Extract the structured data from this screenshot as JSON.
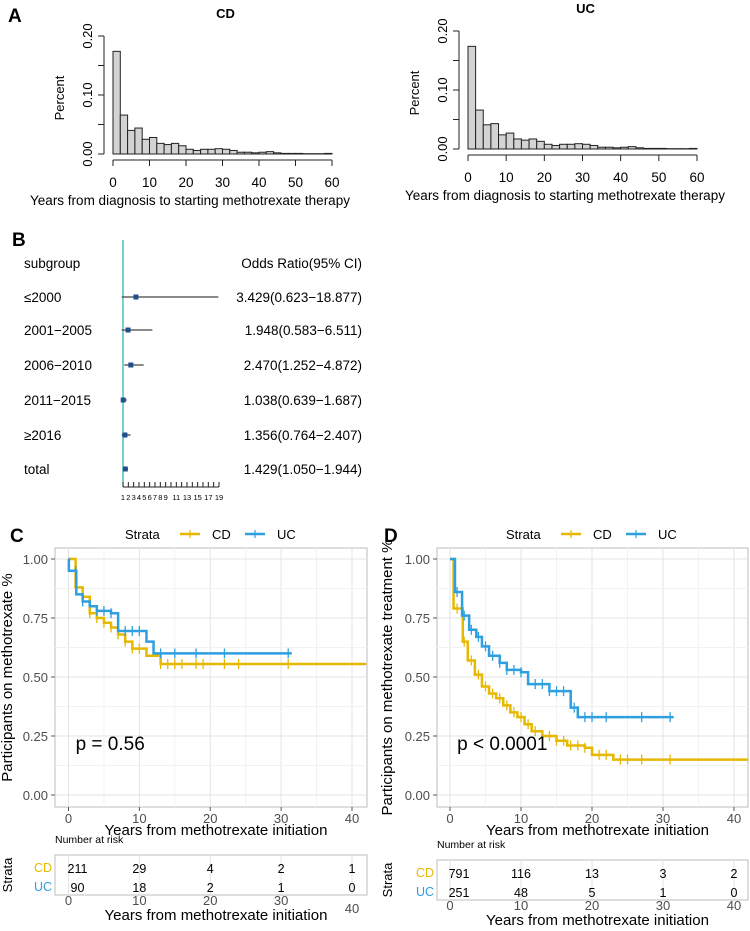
{
  "panel_labels": {
    "a": "A",
    "b": "B",
    "c": "C",
    "d": "D"
  },
  "colors": {
    "CD": "#E7B800",
    "UC": "#2E9FDF",
    "bar_fill": "#D3D3D3",
    "forest_point": "#1F4E8C",
    "reference_line": "#20B2AA"
  },
  "chart_data": [
    {
      "type": "bar",
      "subtype": "histogram",
      "title": "CD",
      "xlabel": "Years from diagnosis to starting methotrexate therapy",
      "ylabel": "Percent",
      "bin_width": 2,
      "xlim": [
        0,
        60
      ],
      "ylim": [
        0,
        0.2
      ],
      "xticks": [
        "0",
        "10",
        "20",
        "30",
        "40",
        "50",
        "60"
      ],
      "yticks": [
        "0.00",
        "0.10",
        "0.20"
      ],
      "values": [
        0.174,
        0.066,
        0.04,
        0.044,
        0.025,
        0.028,
        0.018,
        0.016,
        0.018,
        0.014,
        0.008,
        0.006,
        0.008,
        0.008,
        0.009,
        0.008,
        0.006,
        0.003,
        0.003,
        0.002,
        0.003,
        0.004,
        0.002,
        0.001,
        0.001,
        0.001,
        0.0005,
        0.0005,
        0.0005,
        0.001
      ]
    },
    {
      "type": "bar",
      "subtype": "histogram",
      "title": "UC",
      "xlabel": "Years from diagnosis to starting methotrexate therapy",
      "ylabel": "Percent",
      "bin_width": 2,
      "xlim": [
        0,
        60
      ],
      "ylim": [
        0,
        0.2
      ],
      "xticks": [
        "0",
        "10",
        "20",
        "30",
        "40",
        "50",
        "60"
      ],
      "yticks": [
        "0.00",
        "0.10",
        "0.20"
      ],
      "values": [
        0.174,
        0.066,
        0.041,
        0.043,
        0.024,
        0.027,
        0.017,
        0.015,
        0.017,
        0.013,
        0.008,
        0.006,
        0.008,
        0.008,
        0.009,
        0.008,
        0.006,
        0.003,
        0.003,
        0.002,
        0.003,
        0.004,
        0.002,
        0.001,
        0.001,
        0.001,
        0.0005,
        0.0005,
        0.0005,
        0.001
      ]
    },
    {
      "type": "scatter",
      "subtype": "forest",
      "header_left": "subgroup",
      "header_right": "Odds Ratio(95% CI)",
      "reference": 1,
      "xlim": [
        1,
        19
      ],
      "xticks": [
        "1",
        "2",
        "3",
        "4",
        "5",
        "6",
        "7",
        "8",
        "9",
        "11",
        "13",
        "15",
        "17",
        "19"
      ],
      "rows": [
        {
          "label": "≤2000",
          "or": 3.429,
          "lo": 0.623,
          "hi": 18.877,
          "text": "3.429(0.623−18.877)"
        },
        {
          "label": "2001−2005",
          "or": 1.948,
          "lo": 0.583,
          "hi": 6.511,
          "text": "1.948(0.583−6.511)"
        },
        {
          "label": "2006−2010",
          "or": 2.47,
          "lo": 1.252,
          "hi": 4.872,
          "text": "2.470(1.252−4.872)"
        },
        {
          "label": "2011−2015",
          "or": 1.038,
          "lo": 0.639,
          "hi": 1.687,
          "text": "1.038(0.639−1.687)"
        },
        {
          "label": "≥2016",
          "or": 1.356,
          "lo": 0.764,
          "hi": 2.407,
          "text": "1.356(0.764−2.407)"
        },
        {
          "label": "total",
          "or": 1.429,
          "lo": 1.05,
          "hi": 1.944,
          "text": "1.429(1.050−1.944)"
        }
      ]
    },
    {
      "type": "line",
      "subtype": "kaplan-meier",
      "legend_title": "Strata",
      "legend_position": "top",
      "ylabel": "Participants on methotrexate %",
      "xlabel": "Years from methotrexate initiation",
      "xlim": [
        0,
        42
      ],
      "ylim": [
        0,
        1
      ],
      "xticks": [
        "0",
        "10",
        "20",
        "30",
        "40"
      ],
      "yticks": [
        "0.00",
        "0.25",
        "0.50",
        "0.75",
        "1.00"
      ],
      "grid": true,
      "pvalue": "p = 0.56",
      "series": [
        {
          "name": "CD",
          "steps": [
            [
              0,
              1
            ],
            [
              1,
              0.88
            ],
            [
              2,
              0.84
            ],
            [
              3,
              0.77
            ],
            [
              4,
              0.75
            ],
            [
              5,
              0.73
            ],
            [
              6,
              0.71
            ],
            [
              7,
              0.68
            ],
            [
              8,
              0.65
            ],
            [
              9,
              0.62
            ],
            [
              11,
              0.59
            ],
            [
              13,
              0.555
            ]
          ],
          "end": 42,
          "censored": [
            2,
            3,
            4,
            5,
            6,
            7,
            8,
            9,
            10,
            13,
            14,
            15,
            16,
            18,
            19,
            22,
            24,
            31
          ]
        },
        {
          "name": "UC",
          "steps": [
            [
              0,
              1
            ],
            [
              0.05,
              0.95
            ],
            [
              1.1,
              0.85
            ],
            [
              2,
              0.82
            ],
            [
              3,
              0.8
            ],
            [
              4,
              0.78
            ],
            [
              6,
              0.77
            ],
            [
              7,
              0.695
            ],
            [
              11,
              0.65
            ],
            [
              12,
              0.6
            ]
          ],
          "end": 31.5,
          "censored": [
            1,
            2,
            4,
            5,
            6,
            8,
            9,
            10,
            13,
            15,
            18,
            22,
            31
          ]
        }
      ],
      "risk_table": {
        "title": "Number at risk",
        "strata_label": "Strata",
        "xlabel": "Years from methotrexate initiation",
        "xticks": [
          "0",
          "10",
          "20",
          "30",
          "40"
        ],
        "rows": [
          {
            "name": "CD",
            "values": [
              "211",
              "29",
              "4",
              "2",
              "1"
            ]
          },
          {
            "name": "UC",
            "values": [
              "90",
              "18",
              "2",
              "1",
              "0"
            ]
          }
        ]
      }
    },
    {
      "type": "line",
      "subtype": "kaplan-meier",
      "legend_title": "Strata",
      "legend_position": "top",
      "ylabel": "Participants on methotrexate treatment %",
      "xlabel": "Years from methotrexate initiation",
      "xlim": [
        0,
        42
      ],
      "ylim": [
        0,
        1
      ],
      "xticks": [
        "0",
        "10",
        "20",
        "30",
        "40"
      ],
      "yticks": [
        "0.00",
        "0.25",
        "0.50",
        "0.75",
        "1.00"
      ],
      "grid": true,
      "pvalue": "p < 0.0001",
      "series": [
        {
          "name": "CD",
          "steps": [
            [
              0,
              1
            ],
            [
              0.5,
              0.79
            ],
            [
              1.8,
              0.65
            ],
            [
              2.5,
              0.57
            ],
            [
              3.5,
              0.51
            ],
            [
              4.5,
              0.46
            ],
            [
              5.5,
              0.43
            ],
            [
              6.5,
              0.41
            ],
            [
              7.5,
              0.38
            ],
            [
              8.5,
              0.35
            ],
            [
              9.5,
              0.33
            ],
            [
              10.5,
              0.3
            ],
            [
              11.5,
              0.27
            ],
            [
              13,
              0.25
            ],
            [
              15,
              0.23
            ],
            [
              16.5,
              0.21
            ],
            [
              19,
              0.2
            ],
            [
              20,
              0.17
            ],
            [
              23,
              0.15
            ]
          ],
          "end": 42,
          "censored": [
            1,
            2,
            3,
            4,
            5,
            6,
            7,
            8,
            9,
            10,
            11,
            12,
            13,
            14,
            15,
            16,
            17,
            18,
            19,
            21,
            22,
            24,
            25,
            27,
            31
          ]
        },
        {
          "name": "UC",
          "steps": [
            [
              0,
              1
            ],
            [
              0.7,
              0.86
            ],
            [
              1.7,
              0.76
            ],
            [
              2.7,
              0.7
            ],
            [
              3.7,
              0.67
            ],
            [
              4.5,
              0.63
            ],
            [
              5.5,
              0.59
            ],
            [
              7,
              0.56
            ],
            [
              8,
              0.53
            ],
            [
              10,
              0.52
            ],
            [
              11,
              0.47
            ],
            [
              14,
              0.44
            ],
            [
              17,
              0.37
            ],
            [
              18,
              0.33
            ]
          ],
          "end": 31.5,
          "censored": [
            1,
            2,
            3,
            4,
            5,
            6,
            7,
            8,
            9,
            10,
            12,
            13,
            14,
            15,
            16,
            17.5,
            19,
            20,
            22,
            27,
            31
          ]
        }
      ],
      "risk_table": {
        "title": "Number at risk",
        "strata_label": "Strata",
        "xlabel": "Years from methotrexate initiation",
        "xticks": [
          "0",
          "10",
          "20",
          "30",
          "40"
        ],
        "rows": [
          {
            "name": "CD",
            "values": [
              "791",
              "116",
              "13",
              "3",
              "2"
            ]
          },
          {
            "name": "UC",
            "values": [
              "251",
              "48",
              "5",
              "1",
              "0"
            ]
          }
        ]
      }
    }
  ]
}
